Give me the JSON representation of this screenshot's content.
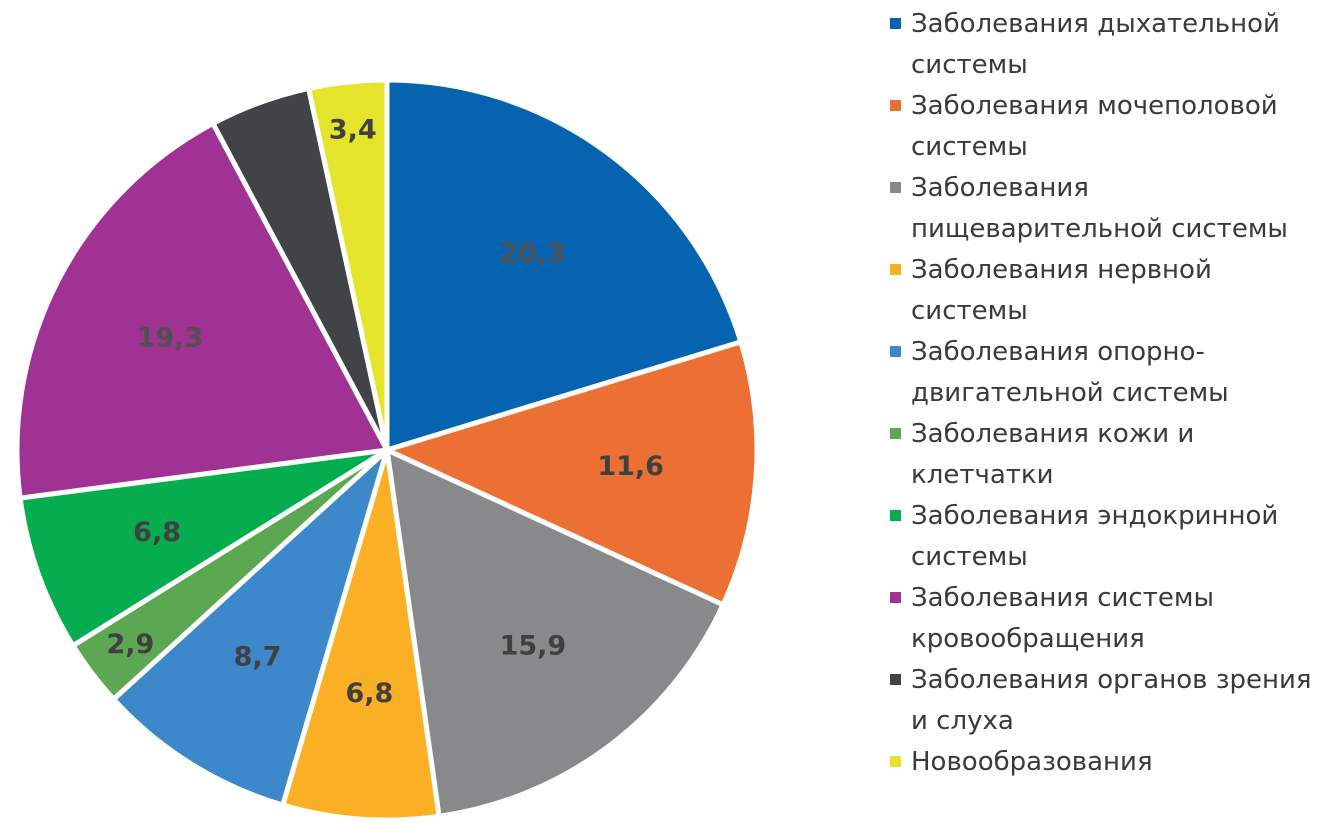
{
  "chart_data": {
    "type": "pie",
    "slices": [
      {
        "label": "Заболевания дыхательной\nсистемы",
        "value": 20.3,
        "display": "20,3",
        "color": "#0563B0",
        "label_color": "#505050"
      },
      {
        "label": "Заболевания мочеполовой\nсистемы",
        "value": 11.6,
        "display": "11,6",
        "color": "#EC6F34",
        "label_color": "#404040"
      },
      {
        "label": "Заболевания\nпищеварительной системы",
        "value": 15.9,
        "display": "15,9",
        "color": "#88898B",
        "label_color": "#404040"
      },
      {
        "label": "Заболевания нервной\nсистемы",
        "value": 6.8,
        "display": "6,8",
        "color": "#FBAF25",
        "label_color": "#404040"
      },
      {
        "label": "Заболевания опорно-\nдвигательной системы",
        "value": 8.7,
        "display": "8,7",
        "color": "#3D87CB",
        "label_color": "#404040"
      },
      {
        "label": "Заболевания кожи и\nклетчатки",
        "value": 2.9,
        "display": "2,9",
        "color": "#5BA752",
        "label_color": "#404040"
      },
      {
        "label": "Заболевания эндокринной\nсистемы",
        "value": 6.8,
        "display": "6,8",
        "color": "#06AD4F",
        "label_color": "#404040"
      },
      {
        "label": "Заболевания системы\nкровообращения",
        "value": 19.3,
        "display": "19,3",
        "color": "#A03293",
        "label_color": "#505050"
      },
      {
        "label": "Заболевания органов зрения\nи слуха",
        "value": 4.4,
        "display": "",
        "color": "#414447",
        "label_color": "#404040"
      },
      {
        "label": "Новообразования",
        "value": 3.4,
        "display": "3,4",
        "color": "#E4E42A",
        "label_color": "#404040"
      }
    ],
    "start_angle_deg": 0,
    "direction": "clockwise",
    "data_labels": true,
    "legend_position": "right"
  }
}
